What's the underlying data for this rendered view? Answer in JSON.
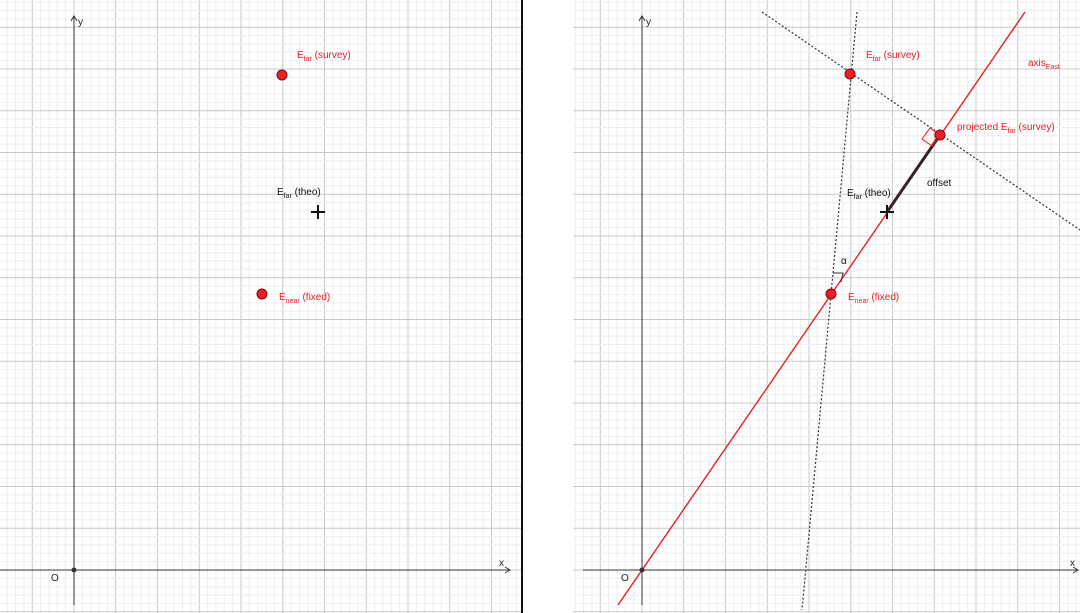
{
  "colors": {
    "accent_red": "#e8202a",
    "grid_minor": "#eeeeee",
    "grid_major": "#c8c8c8",
    "axis": "#333333",
    "offset_segment": "#3a2222"
  },
  "left_panel": {
    "axis_x": "x",
    "axis_y": "y",
    "origin": "O",
    "e_far_survey": {
      "main": "E",
      "sub": "far",
      "rest": " (survey)"
    },
    "e_far_theo": {
      "main": "E",
      "sub": "far",
      "rest": " (theo)"
    },
    "e_near_fixed": {
      "main": "E",
      "sub": "near",
      "rest": " (fixed)"
    }
  },
  "right_panel": {
    "axis_x": "x",
    "axis_y": "y",
    "origin": "O",
    "e_far_survey": {
      "main": "E",
      "sub": "far",
      "rest": " (survey)"
    },
    "e_far_theo": {
      "main": "E",
      "sub": "far",
      "rest": " (theo)"
    },
    "e_near_fixed": {
      "main": "E",
      "sub": "near",
      "rest": " (fixed)"
    },
    "projected": {
      "main": "projected E",
      "sub": "far",
      "rest": " (survey)"
    },
    "axis_east": {
      "main": "axis",
      "sub": "East"
    },
    "offset": "offset",
    "alpha": "α"
  }
}
